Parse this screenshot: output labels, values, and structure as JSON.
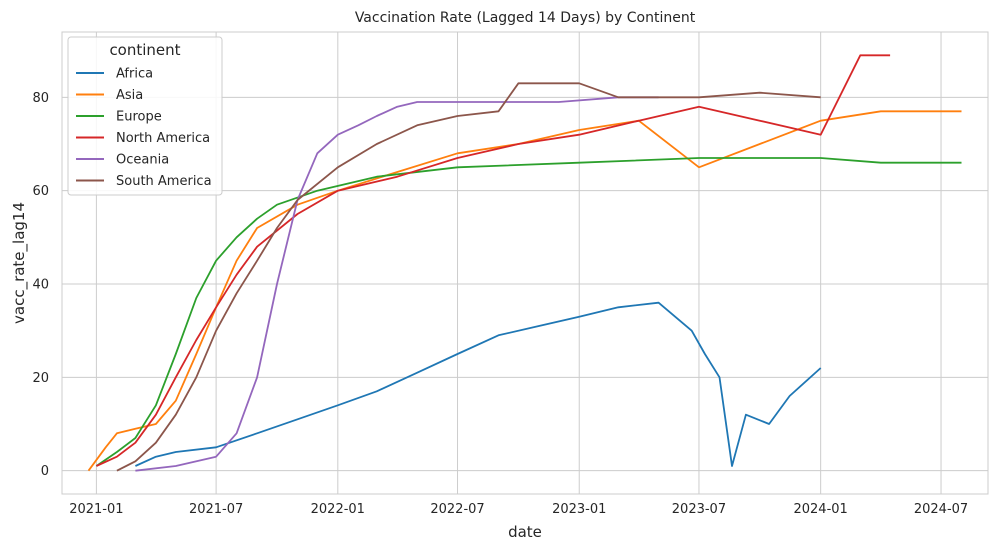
{
  "chart_data": {
    "type": "line",
    "title": "Vaccination Rate (Lagged 14 Days) by Continent",
    "xlabel": "date",
    "ylabel": "vacc_rate_lag14",
    "x_ticks": [
      "2021-01",
      "2021-07",
      "2022-01",
      "2022-07",
      "2023-01",
      "2023-07",
      "2024-01",
      "2024-07"
    ],
    "y_ticks": [
      0,
      20,
      40,
      60,
      80
    ],
    "xlim": [
      "2020-11-10",
      "2024-09-10"
    ],
    "ylim": [
      -5,
      94
    ],
    "grid": true,
    "legend": {
      "title": "continent",
      "placement": "top-left"
    },
    "series": [
      {
        "name": "Africa",
        "color": "#1f77b4",
        "points": [
          [
            "2021-03-01",
            1
          ],
          [
            "2021-04-01",
            3
          ],
          [
            "2021-05-01",
            4
          ],
          [
            "2021-07-01",
            5
          ],
          [
            "2021-09-01",
            8
          ],
          [
            "2021-11-01",
            11
          ],
          [
            "2022-01-01",
            14
          ],
          [
            "2022-03-01",
            17
          ],
          [
            "2022-05-01",
            21
          ],
          [
            "2022-07-01",
            25
          ],
          [
            "2022-09-01",
            29
          ],
          [
            "2022-11-01",
            31
          ],
          [
            "2023-01-01",
            33
          ],
          [
            "2023-03-01",
            35
          ],
          [
            "2023-05-01",
            36
          ],
          [
            "2023-06-20",
            30
          ],
          [
            "2023-07-10",
            25
          ],
          [
            "2023-08-01",
            20
          ],
          [
            "2023-08-20",
            1
          ],
          [
            "2023-09-10",
            12
          ],
          [
            "2023-10-15",
            10
          ],
          [
            "2023-11-15",
            16
          ],
          [
            "2024-01-01",
            22
          ]
        ]
      },
      {
        "name": "Asia",
        "color": "#ff7f0e",
        "points": [
          [
            "2020-12-20",
            0
          ],
          [
            "2021-01-15",
            5
          ],
          [
            "2021-02-01",
            8
          ],
          [
            "2021-03-01",
            9
          ],
          [
            "2021-04-01",
            10
          ],
          [
            "2021-05-01",
            15
          ],
          [
            "2021-06-01",
            25
          ],
          [
            "2021-07-01",
            35
          ],
          [
            "2021-08-01",
            45
          ],
          [
            "2021-09-01",
            52
          ],
          [
            "2021-11-01",
            57
          ],
          [
            "2022-01-01",
            60
          ],
          [
            "2022-04-01",
            64
          ],
          [
            "2022-07-01",
            68
          ],
          [
            "2022-10-01",
            70
          ],
          [
            "2023-01-01",
            73
          ],
          [
            "2023-04-01",
            75
          ],
          [
            "2023-07-01",
            65
          ],
          [
            "2023-10-01",
            70
          ],
          [
            "2024-01-01",
            75
          ],
          [
            "2024-04-01",
            77
          ],
          [
            "2024-08-01",
            77
          ]
        ]
      },
      {
        "name": "Europe",
        "color": "#2ca02c",
        "points": [
          [
            "2021-01-01",
            1
          ],
          [
            "2021-02-01",
            4
          ],
          [
            "2021-03-01",
            7
          ],
          [
            "2021-04-01",
            14
          ],
          [
            "2021-05-01",
            25
          ],
          [
            "2021-06-01",
            37
          ],
          [
            "2021-07-01",
            45
          ],
          [
            "2021-08-01",
            50
          ],
          [
            "2021-09-01",
            54
          ],
          [
            "2021-10-01",
            57
          ],
          [
            "2021-12-01",
            60
          ],
          [
            "2022-03-01",
            63
          ],
          [
            "2022-07-01",
            65
          ],
          [
            "2023-01-01",
            66
          ],
          [
            "2023-07-01",
            67
          ],
          [
            "2024-01-01",
            67
          ],
          [
            "2024-04-01",
            66
          ],
          [
            "2024-08-01",
            66
          ]
        ]
      },
      {
        "name": "North America",
        "color": "#d62728",
        "points": [
          [
            "2021-01-01",
            1
          ],
          [
            "2021-02-01",
            3
          ],
          [
            "2021-03-01",
            6
          ],
          [
            "2021-04-01",
            12
          ],
          [
            "2021-05-01",
            20
          ],
          [
            "2021-06-01",
            28
          ],
          [
            "2021-07-01",
            35
          ],
          [
            "2021-08-01",
            42
          ],
          [
            "2021-09-01",
            48
          ],
          [
            "2021-11-01",
            55
          ],
          [
            "2022-01-01",
            60
          ],
          [
            "2022-04-01",
            63
          ],
          [
            "2022-07-01",
            67
          ],
          [
            "2022-10-01",
            70
          ],
          [
            "2023-01-01",
            72
          ],
          [
            "2023-04-01",
            75
          ],
          [
            "2023-07-01",
            78
          ],
          [
            "2023-10-01",
            75
          ],
          [
            "2024-01-01",
            72
          ],
          [
            "2024-03-01",
            89
          ],
          [
            "2024-04-15",
            89
          ]
        ]
      },
      {
        "name": "Oceania",
        "color": "#9467bd",
        "points": [
          [
            "2021-03-01",
            0
          ],
          [
            "2021-05-01",
            1
          ],
          [
            "2021-07-01",
            3
          ],
          [
            "2021-08-01",
            8
          ],
          [
            "2021-09-01",
            20
          ],
          [
            "2021-10-01",
            40
          ],
          [
            "2021-11-01",
            58
          ],
          [
            "2021-12-01",
            68
          ],
          [
            "2022-01-01",
            72
          ],
          [
            "2022-02-01",
            74
          ],
          [
            "2022-03-01",
            76
          ],
          [
            "2022-04-01",
            78
          ],
          [
            "2022-05-01",
            79
          ],
          [
            "2022-06-01",
            79
          ],
          [
            "2022-09-01",
            79
          ],
          [
            "2022-12-01",
            79
          ],
          [
            "2023-03-01",
            80
          ],
          [
            "2023-05-01",
            80
          ]
        ]
      },
      {
        "name": "South America",
        "color": "#8c564b",
        "points": [
          [
            "2021-02-01",
            0
          ],
          [
            "2021-03-01",
            2
          ],
          [
            "2021-04-01",
            6
          ],
          [
            "2021-05-01",
            12
          ],
          [
            "2021-06-01",
            20
          ],
          [
            "2021-07-01",
            30
          ],
          [
            "2021-08-01",
            38
          ],
          [
            "2021-09-01",
            45
          ],
          [
            "2021-10-01",
            52
          ],
          [
            "2021-11-01",
            58
          ],
          [
            "2022-01-01",
            65
          ],
          [
            "2022-03-01",
            70
          ],
          [
            "2022-05-01",
            74
          ],
          [
            "2022-07-01",
            76
          ],
          [
            "2022-09-01",
            77
          ],
          [
            "2022-10-01",
            83
          ],
          [
            "2023-01-01",
            83
          ],
          [
            "2023-03-01",
            80
          ],
          [
            "2023-07-01",
            80
          ],
          [
            "2023-10-01",
            81
          ],
          [
            "2024-01-01",
            80
          ]
        ]
      }
    ]
  }
}
